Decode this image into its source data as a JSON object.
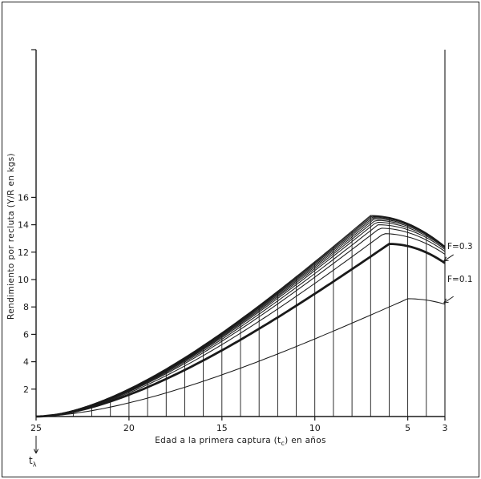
{
  "figure": {
    "background": "#ffffff",
    "ink_color": "#1a1a1a"
  },
  "chart_data": {
    "type": "line",
    "title": "",
    "x_axis": {
      "label_parts": {
        "pre": "Edad a la primera captura (t",
        "sub": "c",
        "post": ") en años"
      },
      "min": 3,
      "max": 25,
      "direction": "reversed",
      "ticks": [
        25,
        20,
        15,
        10,
        5,
        3
      ]
    },
    "y_axis": {
      "label": "Rendimiento por recluta (Y/R en kgs)",
      "min": 0,
      "max": 27,
      "ticks": [
        2,
        4,
        6,
        8,
        10,
        12,
        14,
        16
      ]
    },
    "grid": {
      "vertical_line_at_each_year_from": 4,
      "vertical_line_at_each_year_to": 24,
      "vertical_lines_reach": "top envelope curve"
    },
    "series": [
      {
        "label": "F=0.1",
        "peak_tc": 5.0,
        "peak_yr": 8.6,
        "yr_at_tc3": 8.2,
        "emphasized": false
      },
      {
        "label": "F=0.3",
        "peak_tc": 6.0,
        "peak_yr": 12.6,
        "yr_at_tc3": 11.2,
        "emphasized": true
      },
      {
        "label": null,
        "peak_tc": 6.3,
        "peak_yr": 13.35,
        "yr_at_tc3": 11.85,
        "emphasized": false
      },
      {
        "label": null,
        "peak_tc": 6.5,
        "peak_yr": 13.75,
        "yr_at_tc3": 12.05,
        "emphasized": false
      },
      {
        "label": null,
        "peak_tc": 6.6,
        "peak_yr": 14.0,
        "yr_at_tc3": 12.2,
        "emphasized": false
      },
      {
        "label": null,
        "peak_tc": 6.7,
        "peak_yr": 14.18,
        "yr_at_tc3": 12.3,
        "emphasized": false
      },
      {
        "label": null,
        "peak_tc": 6.75,
        "peak_yr": 14.32,
        "yr_at_tc3": 12.36,
        "emphasized": false
      },
      {
        "label": null,
        "peak_tc": 6.8,
        "peak_yr": 14.43,
        "yr_at_tc3": 12.4,
        "emphasized": false
      },
      {
        "label": null,
        "peak_tc": 6.85,
        "peak_yr": 14.52,
        "yr_at_tc3": 12.42,
        "emphasized": false
      },
      {
        "label": null,
        "peak_tc": 6.9,
        "peak_yr": 14.59,
        "yr_at_tc3": 12.42,
        "emphasized": false
      },
      {
        "label": null,
        "peak_tc": 6.95,
        "peak_yr": 14.64,
        "yr_at_tc3": 12.4,
        "emphasized": false
      },
      {
        "label": null,
        "peak_tc": 7.0,
        "peak_yr": 14.68,
        "yr_at_tc3": 12.37,
        "emphasized": false
      }
    ],
    "annotations": [
      {
        "text": "F=0.3",
        "points_to_tc": 3.1
      },
      {
        "text": "F=0.1",
        "points_to_tc": 3.1
      }
    ],
    "x_axis_marker": {
      "pre": "t",
      "sub": "λ",
      "at_tc": 25
    }
  }
}
